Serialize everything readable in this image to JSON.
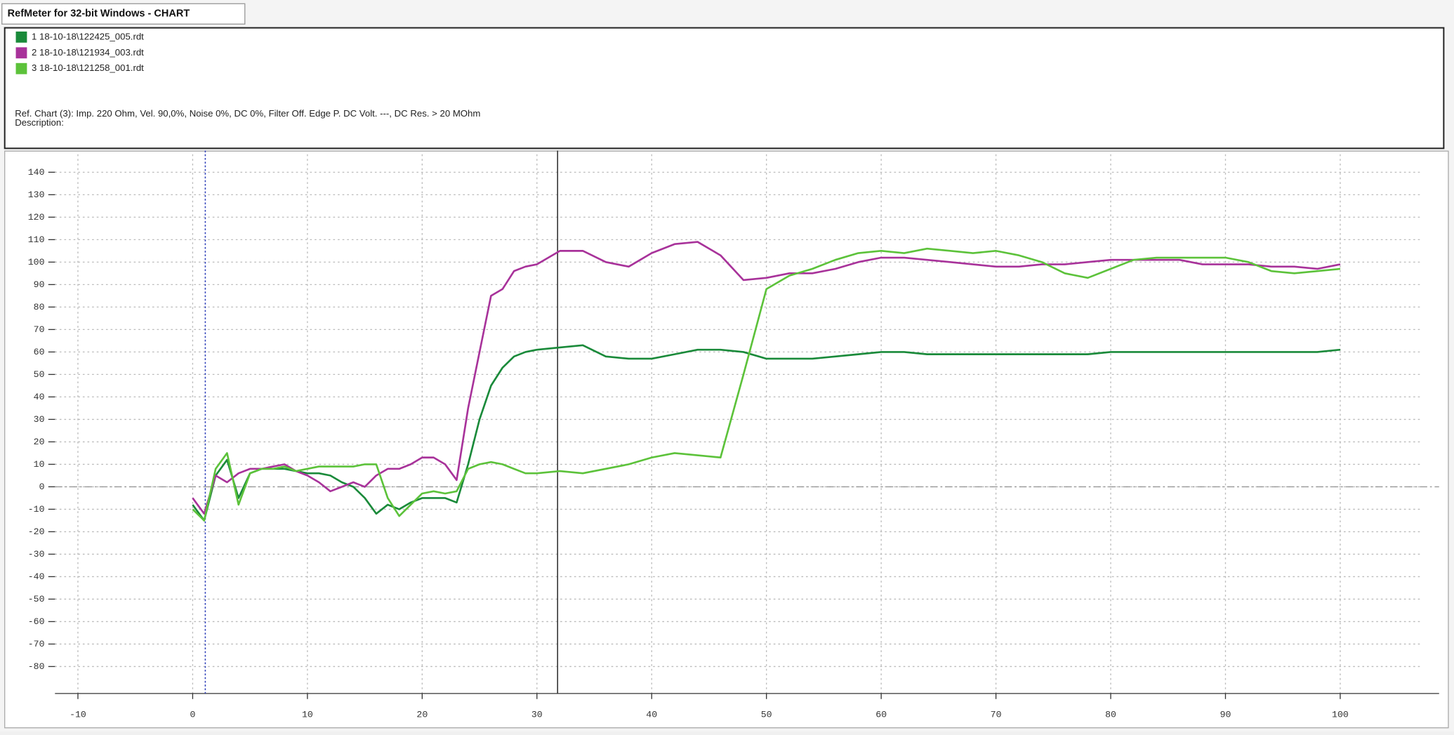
{
  "window": {
    "tab": "RefMeter for 32-bit Windows - CHART"
  },
  "chart_data": {
    "type": "line",
    "info": "Ref. Chart (3): Imp. 220 Ohm, Vel. 90,0%, Noise 0%, DC 0%, Filter Off. Edge P. DC Volt. ---, DC Res. > 20 MOhm",
    "description": "Description:",
    "x": [
      0,
      1,
      2,
      3,
      4,
      5,
      6,
      7,
      8,
      9,
      10,
      11,
      12,
      13,
      14,
      15,
      16,
      17,
      18,
      19,
      20,
      21,
      22,
      23,
      24,
      25,
      26,
      27,
      28,
      29,
      30,
      32,
      34,
      36,
      38,
      40,
      42,
      44,
      46,
      48,
      50,
      52,
      54,
      56,
      58,
      60,
      62,
      64,
      66,
      68,
      70,
      72,
      74,
      76,
      78,
      80,
      82,
      84,
      86,
      88,
      90,
      92,
      94,
      96,
      98,
      100
    ],
    "series": [
      {
        "name": "1 18-10-18\\122425_005.rdt",
        "color": "#1a8a3a",
        "values": [
          -8,
          -15,
          5,
          12,
          -5,
          6,
          8,
          8,
          8,
          7,
          6,
          6,
          5,
          2,
          0,
          -5,
          -12,
          -8,
          -10,
          -7,
          -5,
          -5,
          -5,
          -7,
          10,
          30,
          45,
          53,
          58,
          60,
          61,
          62,
          63,
          58,
          57,
          57,
          59,
          61,
          61,
          60,
          57,
          57,
          57,
          58,
          59,
          60,
          60,
          59,
          59,
          59,
          59,
          59,
          59,
          59,
          59,
          60,
          60,
          60,
          60,
          60,
          60,
          60,
          60,
          60,
          60,
          61
        ]
      },
      {
        "name": "2 18-10-18\\121934_003.rdt",
        "color": "#a8329a",
        "values": [
          -5,
          -12,
          5,
          2,
          6,
          8,
          8,
          9,
          10,
          7,
          5,
          2,
          -2,
          0,
          2,
          0,
          5,
          8,
          8,
          10,
          13,
          13,
          10,
          3,
          35,
          60,
          85,
          88,
          96,
          98,
          99,
          105,
          105,
          100,
          98,
          104,
          108,
          109,
          103,
          92,
          93,
          95,
          95,
          97,
          100,
          102,
          102,
          101,
          100,
          99,
          98,
          98,
          99,
          99,
          100,
          101,
          101,
          101,
          101,
          99,
          99,
          99,
          98,
          98,
          97,
          99
        ]
      },
      {
        "name": "3 18-10-18\\121258_001.rdt",
        "color": "#5cc23a",
        "values": [
          -10,
          -15,
          8,
          15,
          -8,
          6,
          8,
          8,
          9,
          7,
          8,
          9,
          9,
          9,
          9,
          10,
          10,
          -5,
          -13,
          -8,
          -3,
          -2,
          -3,
          -2,
          8,
          10,
          11,
          10,
          8,
          6,
          6,
          7,
          6,
          8,
          10,
          13,
          15,
          14,
          13,
          50,
          88,
          94,
          97,
          101,
          104,
          105,
          104,
          106,
          105,
          104,
          105,
          103,
          100,
          95,
          93,
          97,
          101,
          102,
          102,
          102,
          102,
          100,
          96,
          95,
          96,
          97
        ]
      }
    ],
    "cursors": [
      1.1,
      31.8
    ],
    "xlim": [
      -12,
      107
    ],
    "ylim": [
      -92,
      148
    ],
    "xticks": [
      -10,
      0,
      10,
      20,
      30,
      40,
      50,
      60,
      70,
      80,
      90,
      100
    ],
    "yticks": [
      -80,
      -70,
      -60,
      -50,
      -40,
      -30,
      -20,
      -10,
      0,
      10,
      20,
      30,
      40,
      50,
      60,
      70,
      80,
      90,
      100,
      110,
      120,
      130,
      140
    ],
    "grid": true
  }
}
